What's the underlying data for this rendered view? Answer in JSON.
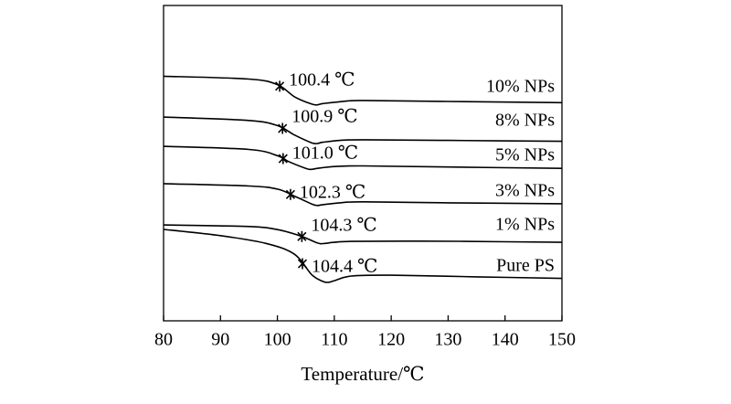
{
  "chart_data": {
    "type": "line",
    "title": "",
    "xlabel": "Temperature/℃",
    "ylabel": "",
    "xlim": [
      80,
      150
    ],
    "x_ticks": [
      "80",
      "90",
      "100",
      "110",
      "120",
      "130",
      "140",
      "150"
    ],
    "grid": false,
    "series": [
      {
        "name": "10% NPs",
        "tg_label": "100.4 ℃",
        "tg": 100.4,
        "points": [
          [
            80,
            0.74
          ],
          [
            95,
            0.56
          ],
          [
            100,
            0.2
          ],
          [
            103,
            -0.58
          ],
          [
            106,
            -1.05
          ],
          [
            107,
            -1.1
          ],
          [
            108,
            -1.02
          ],
          [
            111,
            -0.9
          ],
          [
            115,
            -0.82
          ],
          [
            130,
            -0.88
          ],
          [
            150,
            -0.96
          ]
        ]
      },
      {
        "name": "8% NPs",
        "tg_label": "100.9 ℃",
        "tg": 100.9,
        "points": [
          [
            80,
            0.7
          ],
          [
            95,
            0.48
          ],
          [
            100,
            0.15
          ],
          [
            103,
            -0.45
          ],
          [
            106,
            -0.95
          ],
          [
            107,
            -1.0
          ],
          [
            108,
            -0.92
          ],
          [
            111,
            -0.8
          ],
          [
            115,
            -0.76
          ],
          [
            130,
            -0.8
          ],
          [
            150,
            -0.86
          ]
        ]
      },
      {
        "name": "5% NPs",
        "tg_label": "101.0 ℃",
        "tg": 101.0,
        "points": [
          [
            80,
            0.7
          ],
          [
            95,
            0.5
          ],
          [
            100,
            0.1
          ],
          [
            102,
            -0.28
          ],
          [
            105,
            -0.72
          ],
          [
            106,
            -0.78
          ],
          [
            107,
            -0.72
          ],
          [
            110,
            -0.6
          ],
          [
            115,
            -0.56
          ],
          [
            130,
            -0.63
          ],
          [
            150,
            -0.72
          ]
        ]
      },
      {
        "name": "3% NPs",
        "tg_label": "102.3 ℃",
        "tg": 102.3,
        "points": [
          [
            80,
            0.65
          ],
          [
            95,
            0.5
          ],
          [
            100,
            0.3
          ],
          [
            103,
            -0.15
          ],
          [
            106,
            -0.65
          ],
          [
            107,
            -0.75
          ],
          [
            108,
            -0.7
          ],
          [
            111,
            -0.58
          ],
          [
            115,
            -0.52
          ],
          [
            130,
            -0.58
          ],
          [
            150,
            -0.64
          ]
        ]
      },
      {
        "name": "1% NPs",
        "tg_label": "104.3 ℃",
        "tg": 104.3,
        "points": [
          [
            80,
            0.7
          ],
          [
            95,
            0.6
          ],
          [
            100,
            0.4
          ],
          [
            104,
            0.0
          ],
          [
            107,
            -0.46
          ],
          [
            108,
            -0.5
          ],
          [
            110,
            -0.42
          ],
          [
            113,
            -0.36
          ],
          [
            125,
            -0.34
          ],
          [
            140,
            -0.38
          ],
          [
            150,
            -0.42
          ]
        ]
      },
      {
        "name": "Pure PS",
        "tg_label": "104.4 ℃",
        "tg": 104.4,
        "points": [
          [
            80,
            2.0
          ],
          [
            90,
            1.6
          ],
          [
            98,
            1.1
          ],
          [
            103,
            0.4
          ],
          [
            106,
            -0.9
          ],
          [
            108,
            -1.35
          ],
          [
            109,
            -1.4
          ],
          [
            110,
            -1.3
          ],
          [
            113,
            -1.0
          ],
          [
            120,
            -0.95
          ],
          [
            135,
            -1.05
          ],
          [
            150,
            -1.15
          ]
        ]
      }
    ]
  }
}
